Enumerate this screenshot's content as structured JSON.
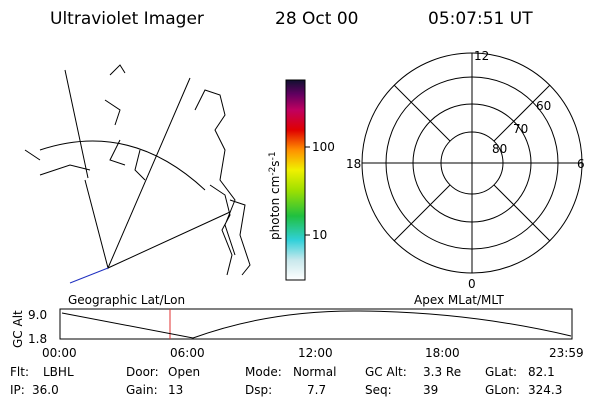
{
  "header": {
    "instrument": "Ultraviolet Imager",
    "date": "28 Oct 00",
    "time": "05:07:51 UT"
  },
  "colorbar": {
    "unit": [
      "photon cm",
      "-2",
      "s",
      "-1"
    ],
    "ticks": [
      "100",
      "10"
    ]
  },
  "polar": {
    "mlt_labels": [
      "12",
      "18",
      "6",
      "0"
    ],
    "lat_labels": [
      "60",
      "70",
      "80"
    ]
  },
  "orbit": {
    "left_title": "Geographic Lat/Lon",
    "right_title": "Apex MLat/MLT",
    "axis_title": "GC Alt",
    "y_labels": [
      "9.0",
      "1.8"
    ],
    "x_labels": [
      "00:00",
      "06:00",
      "12:00",
      "18:00",
      "23:59"
    ]
  },
  "status": {
    "rows": [
      [
        [
          "Flt:",
          "LBHL"
        ],
        [
          "Door:",
          "Open"
        ],
        [
          "Mode:",
          "Normal"
        ],
        [
          "GC Alt:",
          "3.3 Re"
        ],
        [
          "GLat:",
          "82.1"
        ]
      ],
      [
        [
          "IP:",
          "36.0"
        ],
        [
          "Gain:",
          "13"
        ],
        [
          "Dsp:",
          "7.7"
        ],
        [
          "Seq:",
          "39"
        ],
        [
          "GLon:",
          "324.3"
        ]
      ]
    ]
  }
}
